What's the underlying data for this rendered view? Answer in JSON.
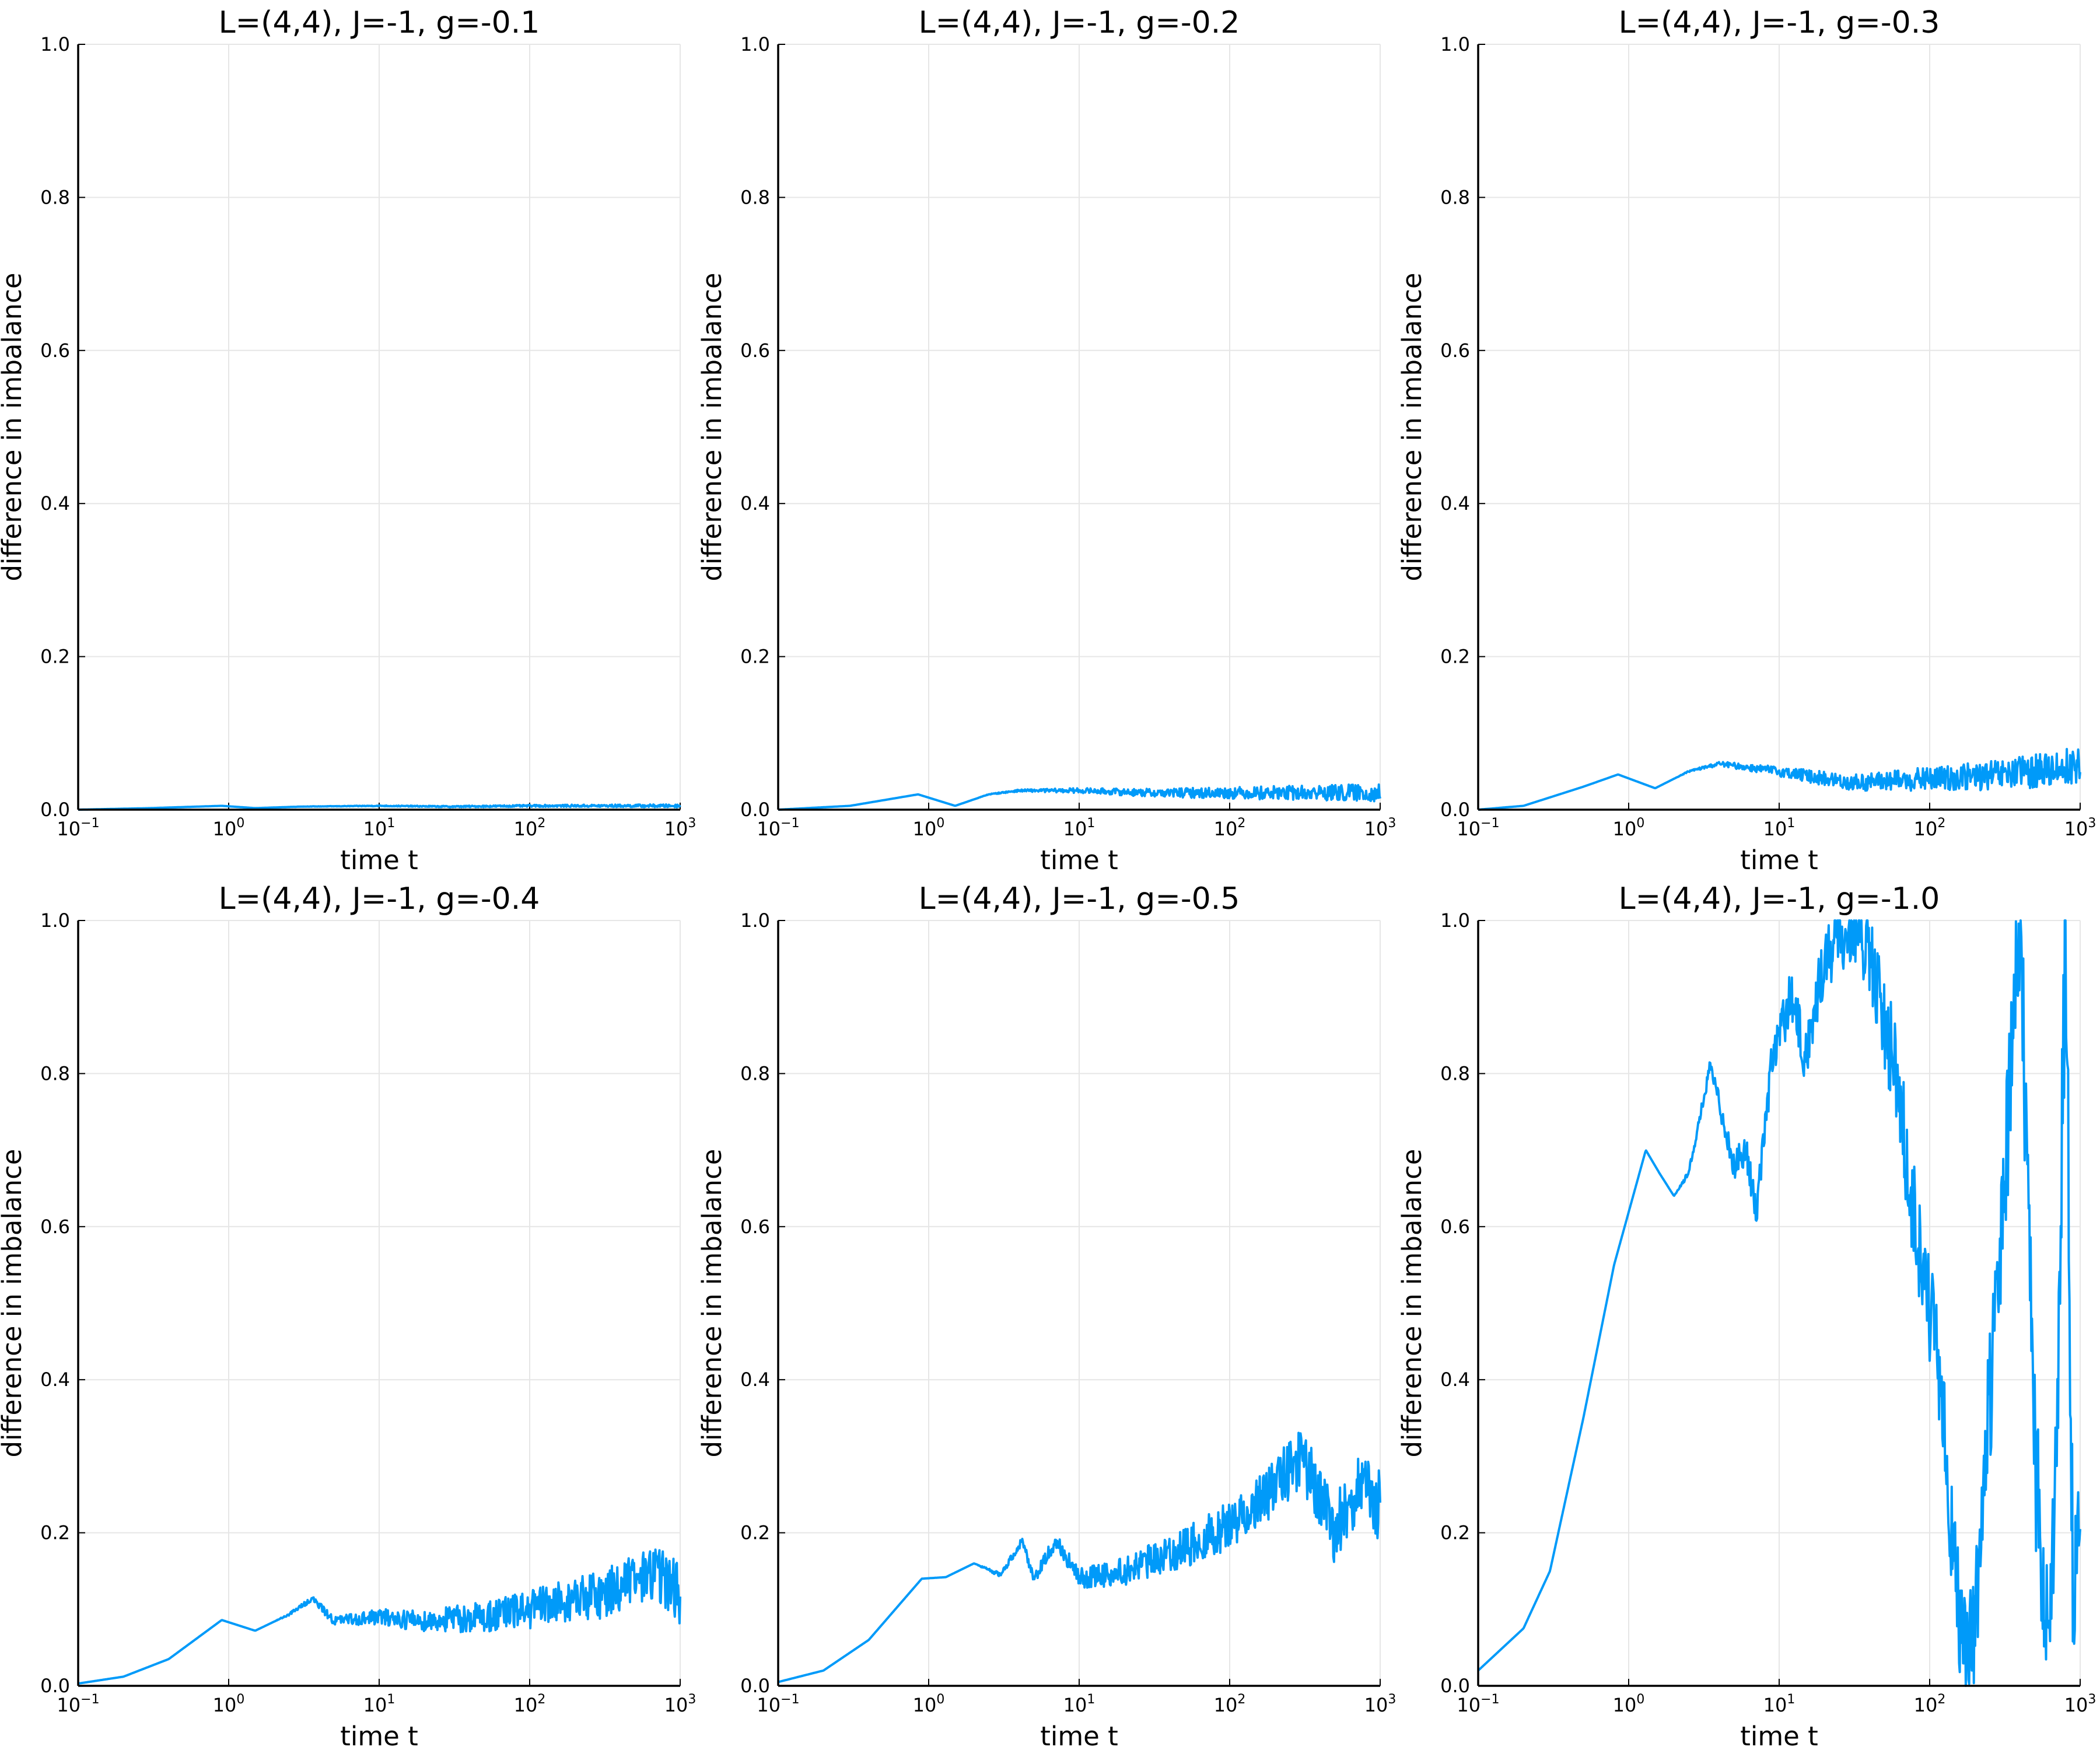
{
  "chart_data": [
    {
      "type": "line",
      "title": "L=(4,4), J=-1, g=-0.1",
      "xlabel": "time t",
      "ylabel": "difference in imbalance",
      "xscale": "log",
      "xlim": [
        0.1,
        1000
      ],
      "ylim": [
        0,
        1
      ],
      "xticks": [
        {
          "base": "10",
          "exp": "−1"
        },
        {
          "base": "10",
          "exp": "0"
        },
        {
          "base": "10",
          "exp": "1"
        },
        {
          "base": "10",
          "exp": "2"
        },
        {
          "base": "10",
          "exp": "3"
        }
      ],
      "yticks": [
        "0.0",
        "0.2",
        "0.4",
        "0.6",
        "0.8",
        "1.0"
      ],
      "grid": true,
      "legend": "none",
      "color": "#009af9",
      "series": [
        {
          "name": "difference in imbalance",
          "trend": [
            [
              0.1,
              0.0
            ],
            [
              0.3,
              0.002
            ],
            [
              0.9,
              0.005
            ],
            [
              1.5,
              0.002
            ],
            [
              3,
              0.004
            ],
            [
              10,
              0.005
            ],
            [
              30,
              0.004
            ],
            [
              100,
              0.005
            ],
            [
              1000,
              0.005
            ]
          ],
          "noise": 0.002
        }
      ]
    },
    {
      "type": "line",
      "title": "L=(4,4), J=-1, g=-0.2",
      "xlabel": "time t",
      "ylabel": "difference in imbalance",
      "xscale": "log",
      "xlim": [
        0.1,
        1000
      ],
      "ylim": [
        0,
        1
      ],
      "xticks": [
        {
          "base": "10",
          "exp": "−1"
        },
        {
          "base": "10",
          "exp": "0"
        },
        {
          "base": "10",
          "exp": "1"
        },
        {
          "base": "10",
          "exp": "2"
        },
        {
          "base": "10",
          "exp": "3"
        }
      ],
      "yticks": [
        "0.0",
        "0.2",
        "0.4",
        "0.6",
        "0.8",
        "1.0"
      ],
      "grid": true,
      "legend": "none",
      "color": "#009af9",
      "series": [
        {
          "name": "difference in imbalance",
          "trend": [
            [
              0.1,
              0.0
            ],
            [
              0.3,
              0.005
            ],
            [
              0.85,
              0.02
            ],
            [
              1.5,
              0.005
            ],
            [
              2.5,
              0.02
            ],
            [
              4,
              0.025
            ],
            [
              10,
              0.025
            ],
            [
              30,
              0.022
            ],
            [
              100,
              0.022
            ],
            [
              1000,
              0.022
            ]
          ],
          "noise": 0.012
        }
      ]
    },
    {
      "type": "line",
      "title": "L=(4,4), J=-1, g=-0.3",
      "xlabel": "time t",
      "ylabel": "difference in imbalance",
      "xscale": "log",
      "xlim": [
        0.1,
        1000
      ],
      "ylim": [
        0,
        1
      ],
      "xticks": [
        {
          "base": "10",
          "exp": "−1"
        },
        {
          "base": "10",
          "exp": "0"
        },
        {
          "base": "10",
          "exp": "1"
        },
        {
          "base": "10",
          "exp": "2"
        },
        {
          "base": "10",
          "exp": "3"
        }
      ],
      "yticks": [
        "0.0",
        "0.2",
        "0.4",
        "0.6",
        "0.8",
        "1.0"
      ],
      "grid": true,
      "legend": "none",
      "color": "#009af9",
      "series": [
        {
          "name": "difference in imbalance",
          "trend": [
            [
              0.1,
              0.0
            ],
            [
              0.2,
              0.005
            ],
            [
              0.5,
              0.03
            ],
            [
              0.85,
              0.046
            ],
            [
              1.5,
              0.028
            ],
            [
              2.5,
              0.05
            ],
            [
              4,
              0.06
            ],
            [
              10,
              0.05
            ],
            [
              30,
              0.035
            ],
            [
              100,
              0.04
            ],
            [
              300,
              0.045
            ],
            [
              1000,
              0.058
            ]
          ],
          "noise": 0.025
        }
      ]
    },
    {
      "type": "line",
      "title": "L=(4,4), J=-1, g=-0.4",
      "xlabel": "time t",
      "ylabel": "difference in imbalance",
      "xscale": "log",
      "xlim": [
        0.1,
        1000
      ],
      "ylim": [
        0,
        1
      ],
      "xticks": [
        {
          "base": "10",
          "exp": "−1"
        },
        {
          "base": "10",
          "exp": "0"
        },
        {
          "base": "10",
          "exp": "1"
        },
        {
          "base": "10",
          "exp": "2"
        },
        {
          "base": "10",
          "exp": "3"
        }
      ],
      "yticks": [
        "0.0",
        "0.2",
        "0.4",
        "0.6",
        "0.8",
        "1.0"
      ],
      "grid": true,
      "legend": "none",
      "color": "#009af9",
      "series": [
        {
          "name": "difference in imbalance",
          "trend": [
            [
              0.1,
              0.003
            ],
            [
              0.2,
              0.012
            ],
            [
              0.4,
              0.035
            ],
            [
              0.9,
              0.086
            ],
            [
              1.5,
              0.072
            ],
            [
              2.5,
              0.093
            ],
            [
              3.6,
              0.114
            ],
            [
              5,
              0.085
            ],
            [
              10,
              0.09
            ],
            [
              20,
              0.085
            ],
            [
              50,
              0.09
            ],
            [
              100,
              0.1
            ],
            [
              300,
              0.12
            ],
            [
              700,
              0.15
            ],
            [
              1000,
              0.12
            ]
          ],
          "noise": 0.04
        }
      ]
    },
    {
      "type": "line",
      "title": "L=(4,4), J=-1, g=-0.5",
      "xlabel": "time t",
      "ylabel": "difference in imbalance",
      "xscale": "log",
      "xlim": [
        0.1,
        1000
      ],
      "ylim": [
        0,
        1
      ],
      "xticks": [
        {
          "base": "10",
          "exp": "−1"
        },
        {
          "base": "10",
          "exp": "0"
        },
        {
          "base": "10",
          "exp": "1"
        },
        {
          "base": "10",
          "exp": "2"
        },
        {
          "base": "10",
          "exp": "3"
        }
      ],
      "yticks": [
        "0.0",
        "0.2",
        "0.4",
        "0.6",
        "0.8",
        "1.0"
      ],
      "grid": true,
      "legend": "none",
      "color": "#009af9",
      "series": [
        {
          "name": "difference in imbalance",
          "trend": [
            [
              0.1,
              0.005
            ],
            [
              0.2,
              0.02
            ],
            [
              0.4,
              0.06
            ],
            [
              0.9,
              0.14
            ],
            [
              1.3,
              0.142
            ],
            [
              2,
              0.16
            ],
            [
              3,
              0.145
            ],
            [
              4.2,
              0.19
            ],
            [
              5,
              0.14
            ],
            [
              7,
              0.19
            ],
            [
              10,
              0.14
            ],
            [
              20,
              0.15
            ],
            [
              50,
              0.18
            ],
            [
              100,
              0.21
            ],
            [
              200,
              0.26
            ],
            [
              300,
              0.3
            ],
            [
              500,
              0.2
            ],
            [
              700,
              0.26
            ],
            [
              1000,
              0.23
            ]
          ],
          "noise": 0.05
        }
      ]
    },
    {
      "type": "line",
      "title": "L=(4,4), J=-1, g=-1.0",
      "xlabel": "time t",
      "ylabel": "difference in imbalance",
      "xscale": "log",
      "xlim": [
        0.1,
        1000
      ],
      "ylim": [
        0,
        1
      ],
      "xticks": [
        {
          "base": "10",
          "exp": "−1"
        },
        {
          "base": "10",
          "exp": "0"
        },
        {
          "base": "10",
          "exp": "1"
        },
        {
          "base": "10",
          "exp": "2"
        },
        {
          "base": "10",
          "exp": "3"
        }
      ],
      "yticks": [
        "0.0",
        "0.2",
        "0.4",
        "0.6",
        "0.8",
        "1.0"
      ],
      "grid": true,
      "legend": "none",
      "color": "#009af9",
      "series": [
        {
          "name": "difference in imbalance",
          "trend": [
            [
              0.1,
              0.02
            ],
            [
              0.2,
              0.075
            ],
            [
              0.3,
              0.15
            ],
            [
              0.5,
              0.35
            ],
            [
              0.8,
              0.55
            ],
            [
              1.3,
              0.7
            ],
            [
              1.6,
              0.67
            ],
            [
              2,
              0.64
            ],
            [
              2.5,
              0.67
            ],
            [
              3.5,
              0.81
            ],
            [
              5,
              0.68
            ],
            [
              6,
              0.7
            ],
            [
              7,
              0.62
            ],
            [
              9,
              0.82
            ],
            [
              12,
              0.9
            ],
            [
              15,
              0.82
            ],
            [
              20,
              0.95
            ],
            [
              30,
              1.0
            ],
            [
              40,
              0.95
            ],
            [
              60,
              0.8
            ],
            [
              80,
              0.6
            ],
            [
              100,
              0.5
            ],
            [
              130,
              0.3
            ],
            [
              160,
              0.05
            ],
            [
              200,
              0.08
            ],
            [
              300,
              0.6
            ],
            [
              400,
              1.0
            ],
            [
              500,
              0.3
            ],
            [
              600,
              0.05
            ],
            [
              700,
              0.3
            ],
            [
              800,
              1.0
            ],
            [
              900,
              0.1
            ],
            [
              1000,
              0.15
            ]
          ],
          "noise": 0.12
        }
      ]
    }
  ]
}
